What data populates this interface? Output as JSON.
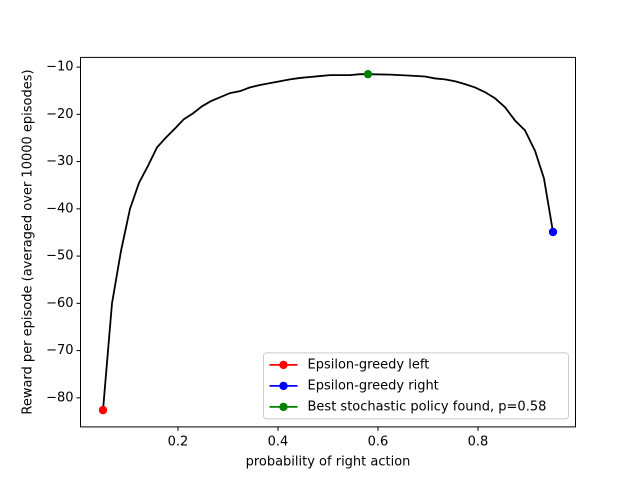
{
  "chart_data": {
    "type": "line",
    "xlabel": "probability of right action",
    "ylabel": "Reward per episode (averaged over 10000 episodes)",
    "xlim": [
      0.005,
      0.995
    ],
    "ylim": [
      -86.15,
      -7.95
    ],
    "xticks": [
      0.2,
      0.4,
      0.6,
      0.8
    ],
    "yticks": [
      {
        "value": -80,
        "label": "−80"
      },
      {
        "value": -70,
        "label": "−70"
      },
      {
        "value": -60,
        "label": "−60"
      },
      {
        "value": -50,
        "label": "−50"
      },
      {
        "value": -40,
        "label": "−40"
      },
      {
        "value": -30,
        "label": "−30"
      },
      {
        "value": -20,
        "label": "−20"
      },
      {
        "value": -10,
        "label": "−10"
      }
    ],
    "legend": "lower right",
    "series": [
      {
        "color": "#000000",
        "marker": false,
        "x": [
          0.05,
          0.068,
          0.086,
          0.104,
          0.122,
          0.14,
          0.158,
          0.176,
          0.194,
          0.212,
          0.23,
          0.248,
          0.266,
          0.284,
          0.304,
          0.324,
          0.344,
          0.364,
          0.384,
          0.404,
          0.424,
          0.444,
          0.464,
          0.484,
          0.504,
          0.524,
          0.544,
          0.564,
          0.58,
          0.624,
          0.664,
          0.694,
          0.714,
          0.734,
          0.754,
          0.774,
          0.794,
          0.814,
          0.834,
          0.854,
          0.874,
          0.894,
          0.914,
          0.932,
          0.95
        ],
        "values": [
          -82.6,
          -60,
          -48.9,
          -40,
          -34.5,
          -30.9,
          -27,
          -24.9,
          -23,
          -21,
          -19.8,
          -18.3,
          -17.2,
          -16.4,
          -15.5,
          -15.1,
          -14.3,
          -13.8,
          -13.4,
          -13,
          -12.6,
          -12.3,
          -12.1,
          -11.9,
          -11.7,
          -11.7,
          -11.7,
          -11.5,
          -11.5,
          -11.6,
          -11.8,
          -12.0,
          -12.4,
          -12.6,
          -13,
          -13.6,
          -14.3,
          -15.3,
          -16.6,
          -18.5,
          -21.3,
          -23.4,
          -27.7,
          -33.6,
          -44.9
        ]
      },
      {
        "name": "Epsilon-greedy left",
        "color": "#ff0000",
        "marker": true,
        "x": [
          0.05
        ],
        "values": [
          -82.6
        ]
      },
      {
        "name": "Epsilon-greedy right",
        "color": "#0000ff",
        "marker": true,
        "x": [
          0.95
        ],
        "values": [
          -44.9
        ]
      },
      {
        "name": "Best stochastic policy found, p=0.58",
        "color": "#008000",
        "marker": true,
        "x": [
          0.58
        ],
        "values": [
          -11.5
        ]
      }
    ]
  }
}
